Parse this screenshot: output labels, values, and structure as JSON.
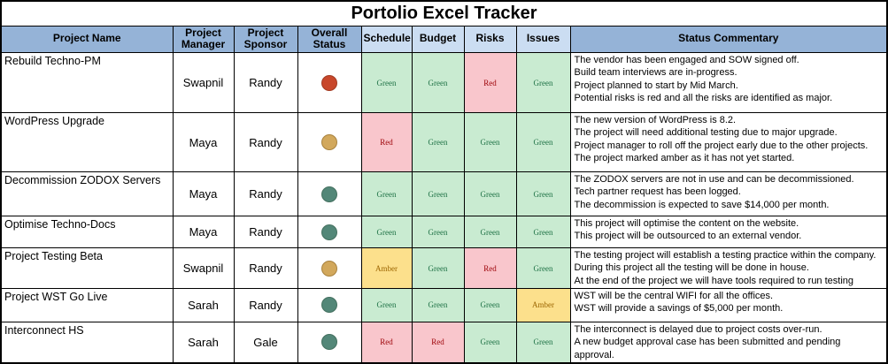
{
  "title": "Portolio Excel Tracker",
  "columns": [
    "Project Name",
    "Project Manager",
    "Project Sponsor",
    "Overall Status",
    "Schedule",
    "Budget",
    "Risks",
    "Issues",
    "Status Commentary"
  ],
  "rows": [
    {
      "name": "Rebuild Techno-PM",
      "manager": "Swapnil",
      "sponsor": "Randy",
      "overall": "red",
      "schedule": "Green",
      "budget": "Green",
      "risks": "Red",
      "issues": "Green",
      "commentary": [
        "The vendor has been engaged and SOW signed off.",
        "Build team interviews are in-progress.",
        "Project planned to start by Mid March.",
        "Potential risks is red and all the risks are identified as major."
      ]
    },
    {
      "name": "WordPress Upgrade",
      "manager": "Maya",
      "sponsor": "Randy",
      "overall": "amber",
      "schedule": "Red",
      "budget": "Green",
      "risks": "Green",
      "issues": "Green",
      "commentary": [
        "The new version of WordPress is 8.2.",
        "The project will need additional testing due to major upgrade.",
        "Project manager to roll off the project early due to the other projects.",
        "The project marked amber as it has not yet started."
      ]
    },
    {
      "name": "Decommission ZODOX Servers",
      "manager": "Maya",
      "sponsor": "Randy",
      "overall": "green",
      "schedule": "Green",
      "budget": "Green",
      "risks": "Green",
      "issues": "Green",
      "commentary": [
        "The ZODOX servers are not in use and can be decommissioned.",
        "Tech partner request has been logged.",
        "The decommission is expected to save $14,000 per month."
      ]
    },
    {
      "name": "Optimise Techno-Docs",
      "manager": "Maya",
      "sponsor": "Randy",
      "overall": "green",
      "schedule": "Green",
      "budget": "Green",
      "risks": "Green",
      "issues": "Green",
      "commentary": [
        "This project will optimise the content on the website.",
        "This project will be outsourced to an external vendor."
      ]
    },
    {
      "name": "Project Testing Beta",
      "manager": "Swapnil",
      "sponsor": "Randy",
      "overall": "amber",
      "schedule": "Amber",
      "budget": "Green",
      "risks": "Red",
      "issues": "Green",
      "commentary": [
        "The testing project will establish a testing practice within the company.",
        "During this project all the testing will be done in house.",
        "At the end of the project we will have tools required to run testing"
      ]
    },
    {
      "name": "Project WST Go Live",
      "manager": "Sarah",
      "sponsor": "Randy",
      "overall": "green",
      "schedule": "Green",
      "budget": "Green",
      "risks": "Green",
      "issues": "Amber",
      "commentary": [
        "WST will be the central WIFI for all the offices.",
        "WST will provide a savings of $5,000 per month."
      ]
    },
    {
      "name": "Interconnect HS",
      "manager": "Sarah",
      "sponsor": "Gale",
      "overall": "green",
      "schedule": "Red",
      "budget": "Red",
      "risks": "Green",
      "issues": "Green",
      "commentary": [
        "The interconnect is delayed due to project costs over-run.",
        "A new budget approval case has been submitted and pending approval."
      ]
    }
  ],
  "colors": {
    "header_blue": "#95B3D7",
    "header_light_blue": "#CBDDF2",
    "rag_green_bg": "#C9EBD1",
    "rag_green_text": "#1F7246",
    "rag_red_bg": "#F9C6CC",
    "rag_red_text": "#9C0006",
    "rag_amber_bg": "#FCE08C",
    "rag_amber_text": "#9C6500",
    "dot_red": "#C8472B",
    "dot_amber": "#D2A85C",
    "dot_green": "#538778"
  }
}
